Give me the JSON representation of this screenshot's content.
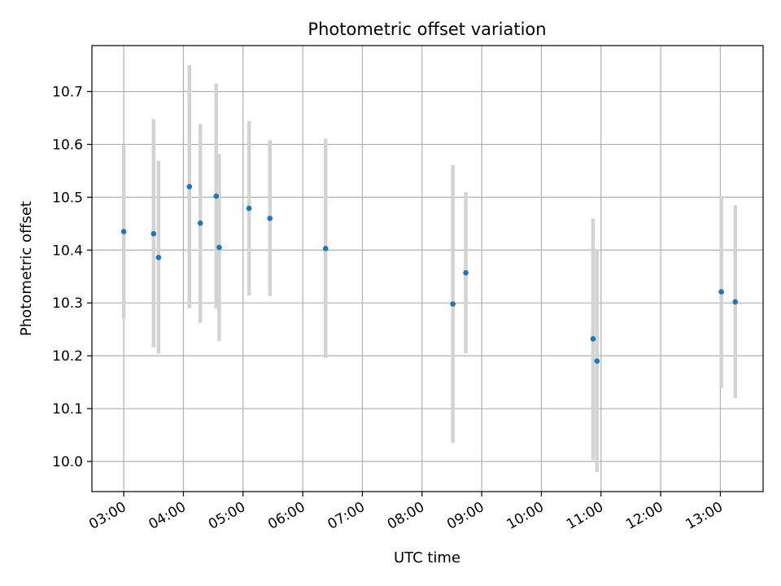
{
  "chart_data": {
    "type": "scatter",
    "title": "Photometric offset variation",
    "xlabel": "UTC time",
    "ylabel": "Photometric offset",
    "x_tick_labels": [
      "03:00",
      "04:00",
      "05:00",
      "06:00",
      "07:00",
      "08:00",
      "09:00",
      "10:00",
      "11:00",
      "12:00",
      "13:00"
    ],
    "y_tick_labels": [
      "10.0",
      "10.1",
      "10.2",
      "10.3",
      "10.4",
      "10.5",
      "10.6",
      "10.7"
    ],
    "xlim": [
      "02:28",
      "13:43"
    ],
    "ylim": [
      9.943,
      10.787
    ],
    "grid": true,
    "marker_color": "#1f77b4",
    "errorbar_color": "#d3d3d3",
    "points": [
      {
        "x": "03:00",
        "y": 10.435,
        "ylow": 10.27,
        "yhigh": 10.598
      },
      {
        "x": "03:30",
        "y": 10.431,
        "ylow": 10.216,
        "yhigh": 10.648
      },
      {
        "x": "03:35",
        "y": 10.386,
        "ylow": 10.204,
        "yhigh": 10.569
      },
      {
        "x": "04:06",
        "y": 10.52,
        "ylow": 10.29,
        "yhigh": 10.75
      },
      {
        "x": "04:17",
        "y": 10.451,
        "ylow": 10.262,
        "yhigh": 10.639
      },
      {
        "x": "04:33",
        "y": 10.502,
        "ylow": 10.289,
        "yhigh": 10.715
      },
      {
        "x": "04:36",
        "y": 10.405,
        "ylow": 10.228,
        "yhigh": 10.582
      },
      {
        "x": "05:06",
        "y": 10.479,
        "ylow": 10.314,
        "yhigh": 10.644
      },
      {
        "x": "05:27",
        "y": 10.46,
        "ylow": 10.313,
        "yhigh": 10.608
      },
      {
        "x": "06:23",
        "y": 10.403,
        "ylow": 10.196,
        "yhigh": 10.611
      },
      {
        "x": "08:31",
        "y": 10.298,
        "ylow": 10.035,
        "yhigh": 10.561
      },
      {
        "x": "08:44",
        "y": 10.357,
        "ylow": 10.205,
        "yhigh": 10.51
      },
      {
        "x": "10:52",
        "y": 10.232,
        "ylow": 10.003,
        "yhigh": 10.46
      },
      {
        "x": "10:56",
        "y": 10.19,
        "ylow": 9.98,
        "yhigh": 10.4
      },
      {
        "x": "13:01",
        "y": 10.321,
        "ylow": 10.139,
        "yhigh": 10.502
      },
      {
        "x": "13:15",
        "y": 10.302,
        "ylow": 10.12,
        "yhigh": 10.485
      }
    ]
  }
}
